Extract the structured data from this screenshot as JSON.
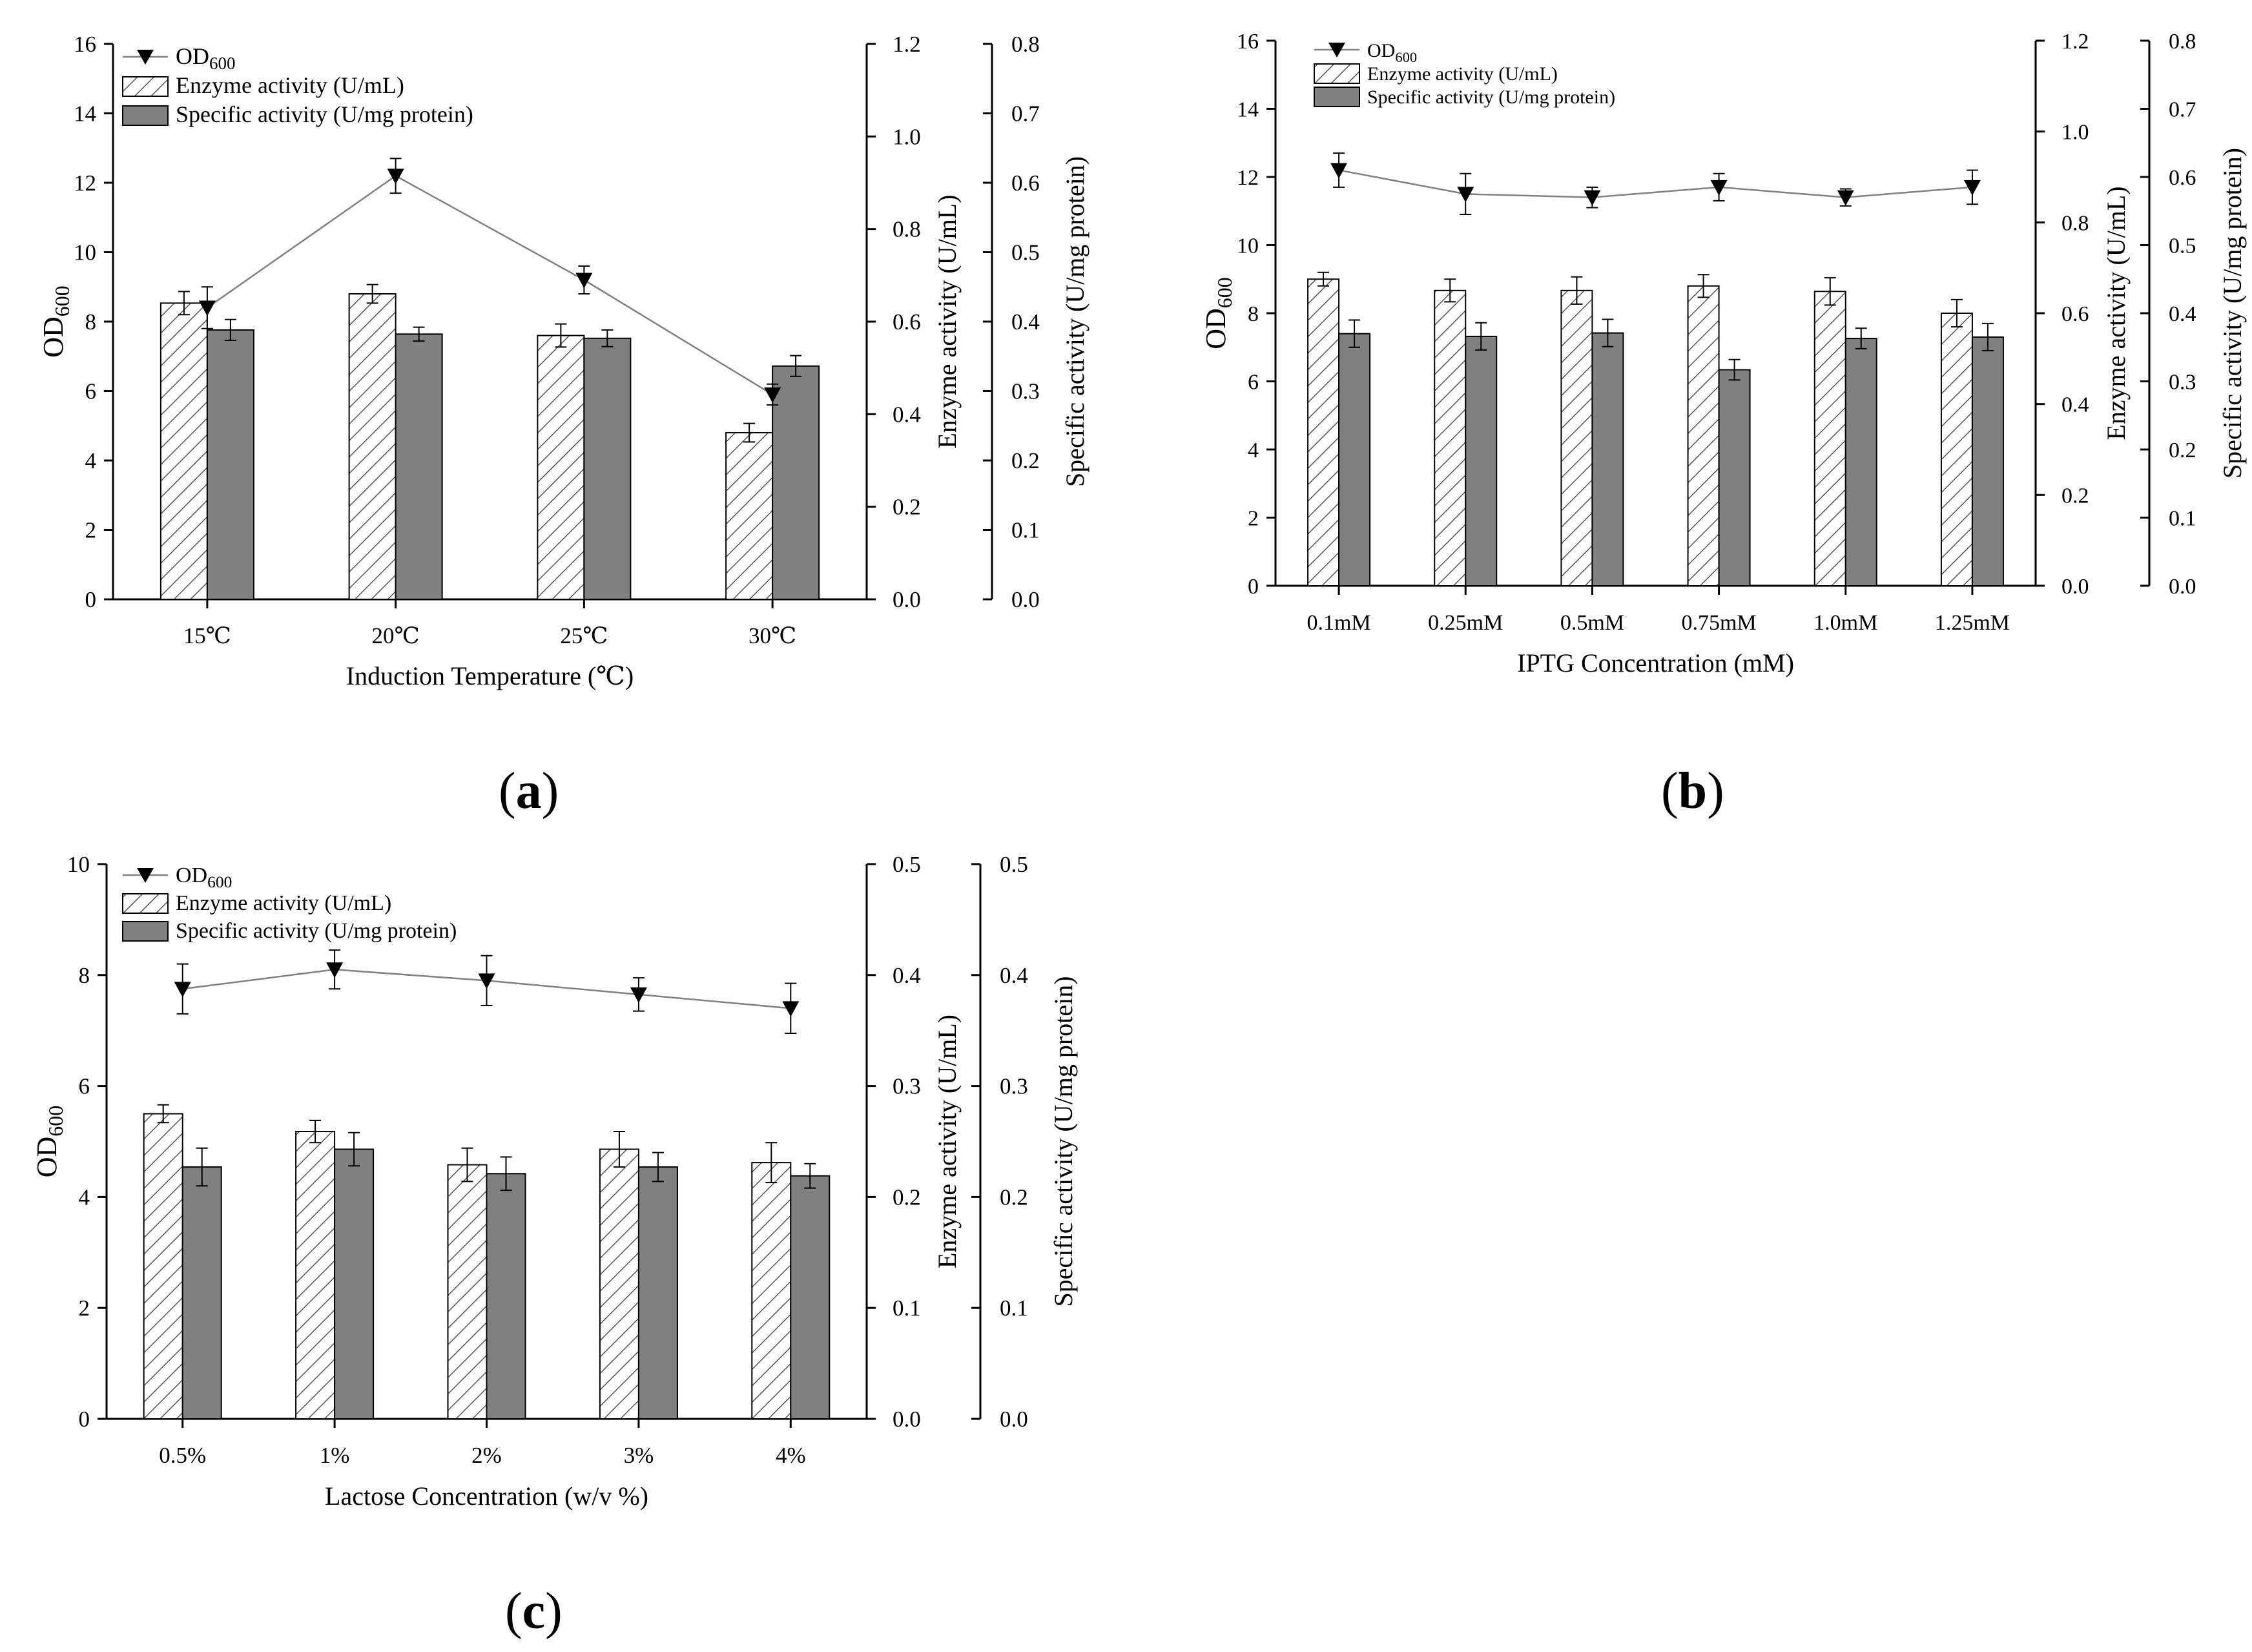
{
  "figure": {
    "panels": [
      {
        "label_open": "(",
        "label_letter": "a",
        "label_close": ")"
      },
      {
        "label_open": "(",
        "label_letter": "b",
        "label_close": ")"
      },
      {
        "label_open": "(",
        "label_letter": "c",
        "label_close": ")"
      }
    ]
  },
  "colors": {
    "od_line": "#808080",
    "marker": "#000000",
    "specific_fill": "#808080",
    "enzyme_hatch": "#555555",
    "axis": "#000000"
  },
  "chart_data": [
    {
      "type": "bar",
      "panel": "a",
      "xlabel": "Induction Temperature (℃)",
      "categories": [
        "15℃",
        "20℃",
        "25℃",
        "30℃"
      ],
      "legend": {
        "od": "OD",
        "od_sub": "600",
        "enzyme": "Enzyme activity (U/mL)",
        "specific": "Specific activity (U/mg protein)"
      },
      "ylabel_left": {
        "main": "OD",
        "sub": "600"
      },
      "ylabel_right1": "Enzyme activity (U/mL)",
      "ylabel_right2": "Specific activity (U/mg protein)",
      "ylim_left": [
        0,
        16
      ],
      "ylim_right1": [
        0,
        1.2
      ],
      "ylim_right2": [
        0,
        0.8
      ],
      "ticks_left": [
        "0",
        "2",
        "4",
        "6",
        "8",
        "10",
        "12",
        "14",
        "16"
      ],
      "ticks_right1": [
        "0.0",
        "0.2",
        "0.4",
        "0.6",
        "0.8",
        "1.0",
        "1.2"
      ],
      "ticks_right2": [
        "0.0",
        "0.1",
        "0.2",
        "0.3",
        "0.4",
        "0.5",
        "0.6",
        "0.7",
        "0.8"
      ],
      "series": [
        {
          "name": "OD600",
          "axis": "left",
          "kind": "line",
          "values": [
            8.4,
            12.2,
            9.2,
            5.9
          ],
          "errors": [
            0.6,
            0.5,
            0.4,
            0.3
          ]
        },
        {
          "name": "Enzyme activity (U/mL)",
          "axis": "right1",
          "kind": "bar-hatched",
          "values": [
            0.64,
            0.66,
            0.57,
            0.36
          ],
          "errors": [
            0.025,
            0.02,
            0.025,
            0.02
          ]
        },
        {
          "name": "Specific activity (U/mg protein)",
          "axis": "right2",
          "kind": "bar-solid",
          "values": [
            0.388,
            0.382,
            0.376,
            0.336
          ],
          "errors": [
            0.015,
            0.01,
            0.012,
            0.015
          ]
        }
      ]
    },
    {
      "type": "bar",
      "panel": "b",
      "xlabel": "IPTG Concentration (mM)",
      "categories": [
        "0.1mM",
        "0.25mM",
        "0.5mM",
        "0.75mM",
        "1.0mM",
        "1.25mM"
      ],
      "legend": {
        "od": "OD",
        "od_sub": "600",
        "enzyme": "Enzyme activity (U/mL)",
        "specific": "Specific activity (U/mg protein)"
      },
      "ylabel_left": {
        "main": "OD",
        "sub": "600"
      },
      "ylabel_right1": "Enzyme activity (U/mL)",
      "ylabel_right2": "Specific activity (U/mg protein)",
      "ylim_left": [
        0,
        16
      ],
      "ylim_right1": [
        0,
        1.2
      ],
      "ylim_right2": [
        0,
        0.8
      ],
      "ticks_left": [
        "0",
        "2",
        "4",
        "6",
        "8",
        "10",
        "12",
        "14",
        "16"
      ],
      "ticks_right1": [
        "0.0",
        "0.2",
        "0.4",
        "0.6",
        "0.8",
        "1.0",
        "1.2"
      ],
      "ticks_right2": [
        "0.0",
        "0.1",
        "0.2",
        "0.3",
        "0.4",
        "0.5",
        "0.6",
        "0.7",
        "0.8"
      ],
      "series": [
        {
          "name": "OD600",
          "axis": "left",
          "kind": "line",
          "values": [
            12.2,
            11.5,
            11.4,
            11.7,
            11.4,
            11.7
          ],
          "errors": [
            0.5,
            0.6,
            0.3,
            0.4,
            0.25,
            0.5
          ]
        },
        {
          "name": "Enzyme activity (U/mL)",
          "axis": "right1",
          "kind": "bar-hatched",
          "values": [
            0.675,
            0.65,
            0.65,
            0.66,
            0.648,
            0.6
          ],
          "errors": [
            0.015,
            0.025,
            0.03,
            0.025,
            0.03,
            0.03
          ]
        },
        {
          "name": "Specific activity (U/mg protein)",
          "axis": "right2",
          "kind": "bar-solid",
          "values": [
            0.37,
            0.366,
            0.371,
            0.317,
            0.363,
            0.365
          ],
          "errors": [
            0.02,
            0.02,
            0.02,
            0.015,
            0.015,
            0.02
          ]
        }
      ]
    },
    {
      "type": "bar",
      "panel": "c",
      "xlabel": "Lactose Concentration (w/v %)",
      "categories": [
        "0.5%",
        "1%",
        "2%",
        "3%",
        "4%"
      ],
      "legend": {
        "od": "OD",
        "od_sub": "600",
        "enzyme": "Enzyme activity (U/mL)",
        "specific": "Specific activity (U/mg protein)"
      },
      "ylabel_left": {
        "main": "OD",
        "sub": "600"
      },
      "ylabel_right1": "Enzyme activity (U/mL)",
      "ylabel_right2": "Specific activity (U/mg protein)",
      "ylim_left": [
        0,
        10
      ],
      "ylim_right1": [
        0,
        0.5
      ],
      "ylim_right2": [
        0,
        0.5
      ],
      "ticks_left": [
        "0",
        "2",
        "4",
        "6",
        "8",
        "10"
      ],
      "ticks_right1": [
        "0.0",
        "0.1",
        "0.2",
        "0.3",
        "0.4",
        "0.5"
      ],
      "ticks_right2": [
        "0.0",
        "0.1",
        "0.2",
        "0.3",
        "0.4",
        "0.5"
      ],
      "series": [
        {
          "name": "OD600",
          "axis": "left",
          "kind": "line",
          "values": [
            7.75,
            8.1,
            7.9,
            7.65,
            7.4
          ],
          "errors": [
            0.45,
            0.35,
            0.45,
            0.3,
            0.45
          ]
        },
        {
          "name": "Enzyme activity (U/mL)",
          "axis": "right1",
          "kind": "bar-hatched",
          "values": [
            0.275,
            0.259,
            0.229,
            0.243,
            0.231
          ],
          "errors": [
            0.008,
            0.01,
            0.015,
            0.016,
            0.018
          ]
        },
        {
          "name": "Specific activity (U/mg protein)",
          "axis": "right2",
          "kind": "bar-solid",
          "values": [
            0.227,
            0.243,
            0.221,
            0.227,
            0.219
          ],
          "errors": [
            0.017,
            0.015,
            0.015,
            0.013,
            0.011
          ]
        }
      ]
    }
  ]
}
